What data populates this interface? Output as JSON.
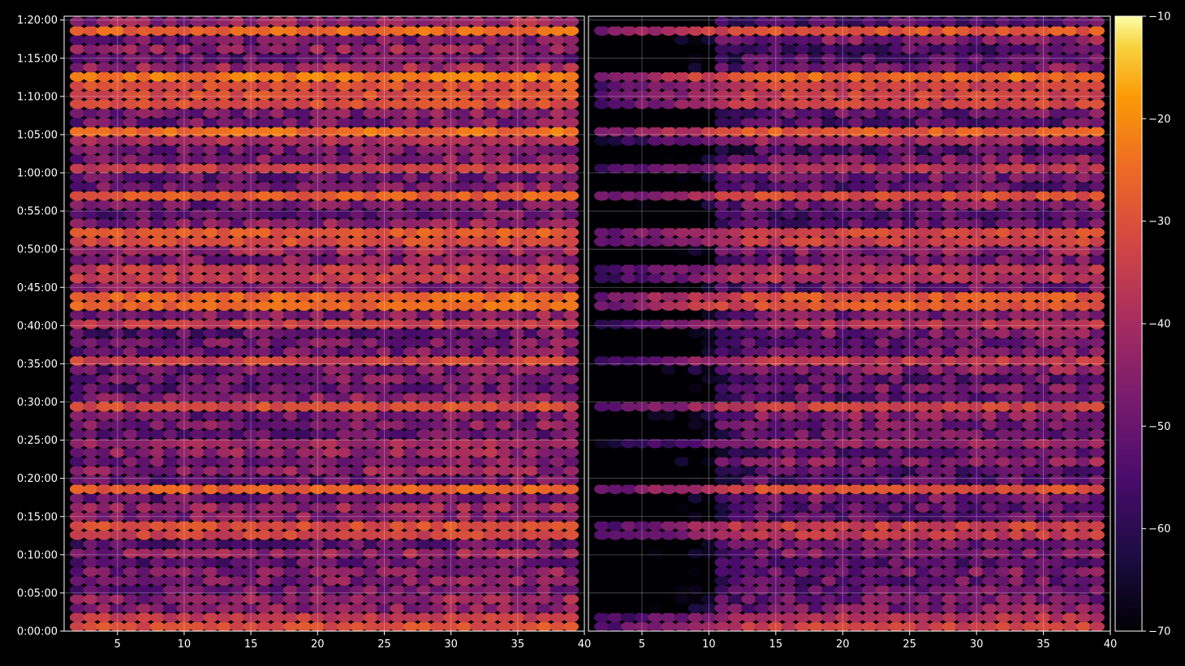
{
  "chart_data": {
    "type": "heatmap",
    "title": "",
    "panels": [
      {
        "name": "",
        "x_range": [
          1,
          40
        ]
      },
      {
        "name": "",
        "x_range": [
          1,
          40
        ]
      }
    ],
    "x_ticks": [
      5,
      10,
      15,
      20,
      25,
      30,
      35,
      40
    ],
    "x_tick_labels": [
      "5",
      "10",
      "15",
      "20",
      "25",
      "30",
      "35",
      "40"
    ],
    "y_ticks": [
      "0:00:00",
      "0:05:00",
      "0:10:00",
      "0:15:00",
      "0:20:00",
      "0:25:00",
      "0:30:00",
      "0:35:00",
      "0:40:00",
      "0:45:00",
      "0:50:00",
      "0:55:00",
      "1:00:00",
      "1:05:00",
      "1:10:00",
      "1:15:00",
      "1:20:00"
    ],
    "y_range_minutes": [
      0,
      80.5
    ],
    "colorbar": {
      "colormap": "inferno",
      "range": [
        -70,
        -10
      ],
      "ticks": [
        -10,
        -20,
        -30,
        -40,
        -50,
        -60,
        -70
      ],
      "tick_labels": [
        "−10",
        "−20",
        "−30",
        "−40",
        "−50",
        "−60",
        "−70"
      ]
    },
    "grid": true,
    "strong_rows_minutes": [
      0.8,
      1.8,
      12.3,
      13.6,
      18.2,
      24.6,
      29.6,
      35.8,
      39.7,
      43.2,
      46.8,
      51.4,
      52.5,
      56.8,
      60.3,
      64.0,
      65.0,
      69.6,
      70.8,
      72.2,
      78.7
    ],
    "strong_row_levels": [
      -30,
      -34,
      -32,
      -30,
      -27,
      -40,
      -30,
      -32,
      -34,
      -25,
      -34,
      -30,
      -28,
      -27,
      -34,
      -38,
      -24,
      -30,
      -30,
      -22,
      -25
    ]
  }
}
